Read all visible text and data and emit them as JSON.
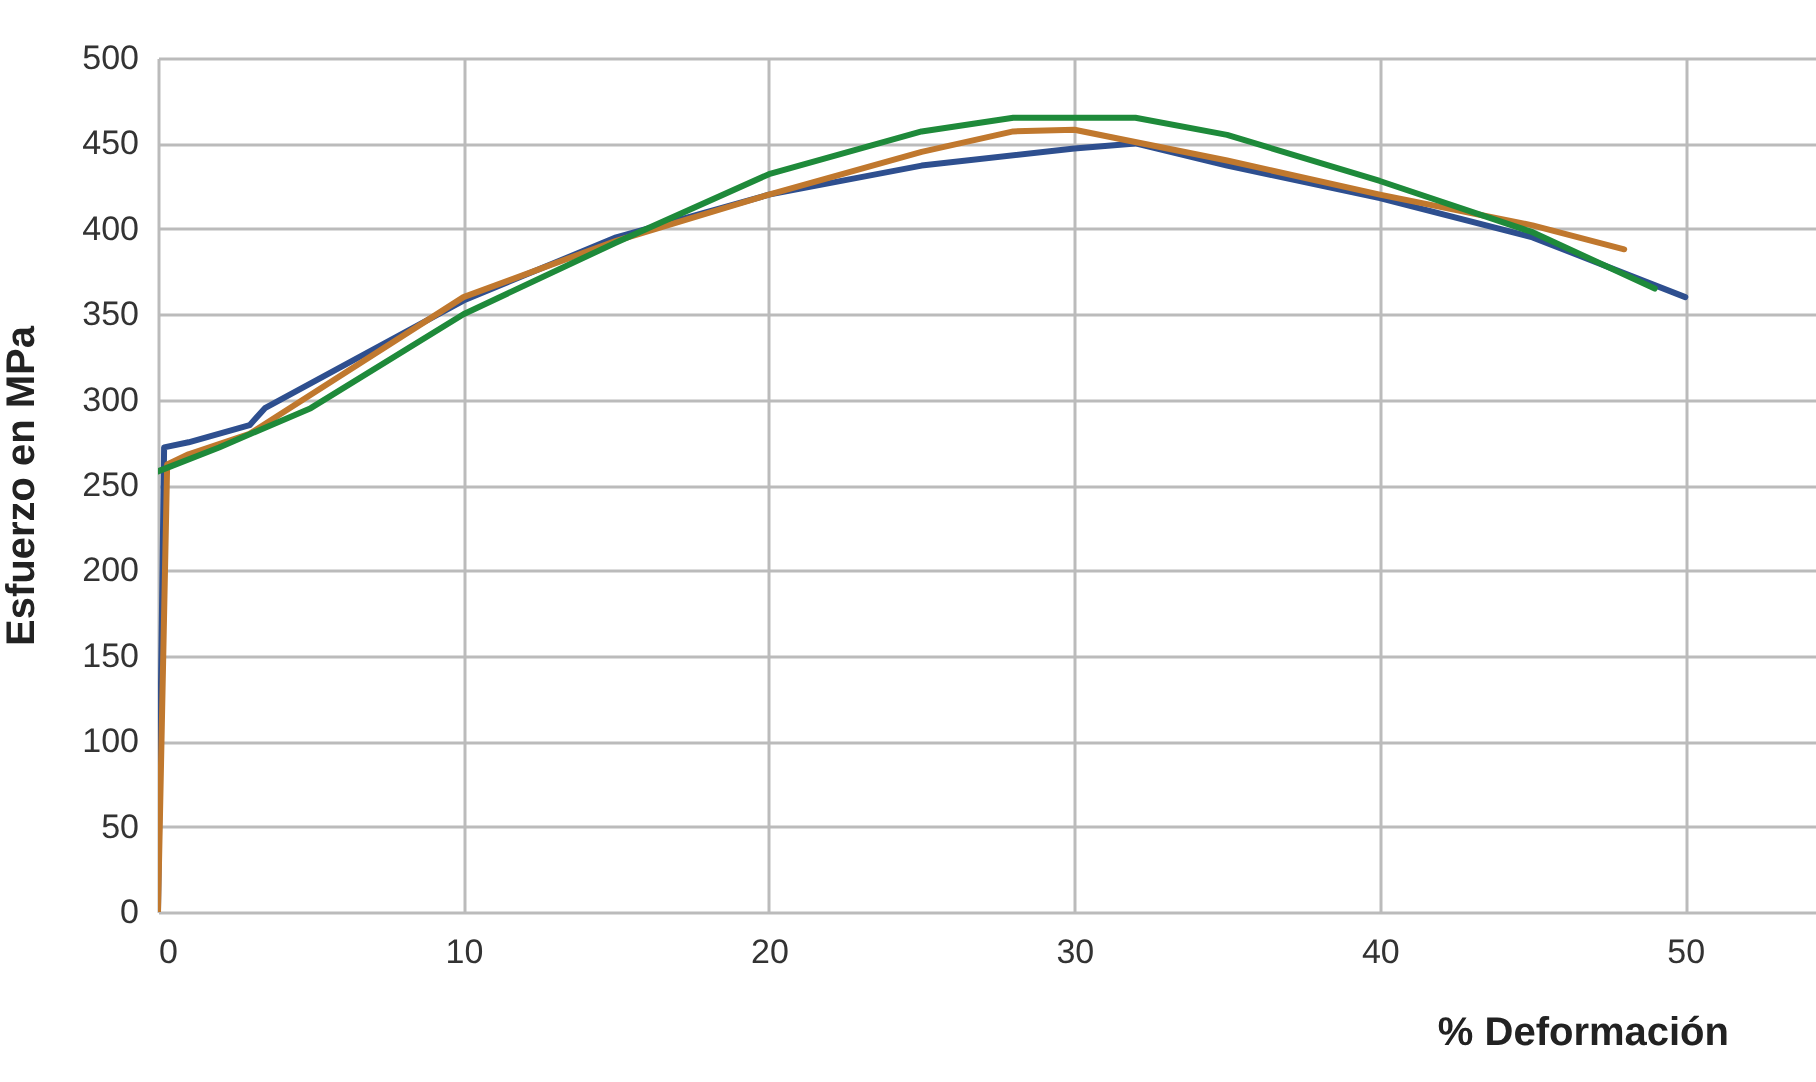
{
  "chart_data": {
    "type": "line",
    "xlabel": "%  Deformación",
    "ylabel": "Esfuerzo en MPa",
    "xlim": [
      0,
      55
    ],
    "ylim": [
      0,
      500
    ],
    "xticks": [
      0,
      10,
      20,
      30,
      40,
      50
    ],
    "yticks": [
      0,
      50,
      100,
      150,
      200,
      250,
      300,
      350,
      400,
      450,
      500
    ],
    "grid": true,
    "legend": false,
    "marker": "none",
    "line_style": "solid",
    "series": [
      {
        "color": "#2e4f8f",
        "x": [
          0,
          0.2,
          1,
          3,
          3.5,
          10,
          15,
          20,
          25,
          30,
          32,
          35,
          40,
          45,
          50
        ],
        "values": [
          0,
          272,
          275,
          285,
          295,
          358,
          395,
          420,
          437,
          447,
          450,
          437,
          418,
          395,
          360
        ]
      },
      {
        "color": "#c0782e",
        "x": [
          0,
          0.3,
          1,
          3,
          10,
          15,
          20,
          25,
          28,
          30,
          35,
          40,
          45,
          48
        ],
        "values": [
          0,
          262,
          268,
          280,
          360,
          393,
          420,
          445,
          457,
          458,
          440,
          420,
          402,
          388
        ]
      },
      {
        "color": "#1e8a3a",
        "x": [
          0,
          2,
          5,
          10,
          15,
          20,
          25,
          28,
          32,
          35,
          40,
          45,
          49
        ],
        "values": [
          258,
          272,
          295,
          350,
          392,
          432,
          457,
          465,
          465,
          455,
          428,
          398,
          365
        ]
      }
    ]
  }
}
